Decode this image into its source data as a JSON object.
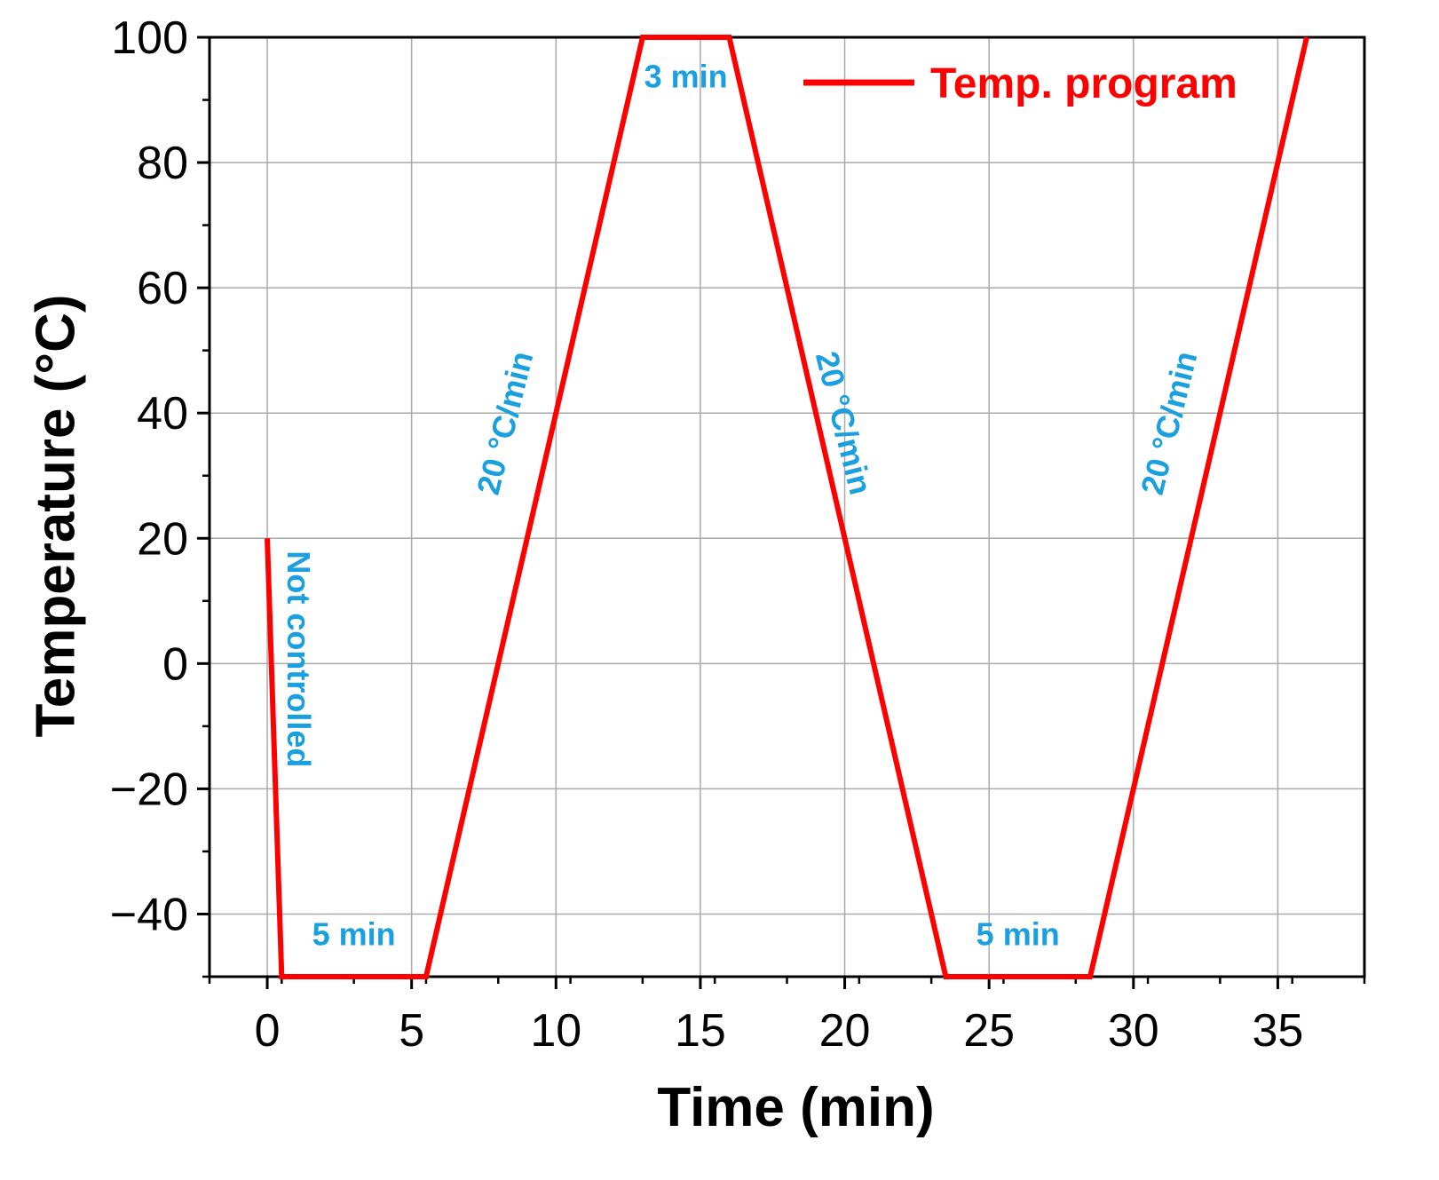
{
  "chart_data": {
    "type": "line",
    "title": "",
    "xlabel": "Time (min)",
    "ylabel": "Temperature (°C)",
    "xlim": [
      -2,
      38
    ],
    "ylim": [
      -50,
      100
    ],
    "xticks": [
      0,
      5,
      10,
      15,
      20,
      25,
      30,
      35
    ],
    "yticks": [
      -40,
      -20,
      0,
      20,
      40,
      60,
      80,
      100
    ],
    "xtick_labels": [
      "0",
      "5",
      "10",
      "15",
      "20",
      "25",
      "30",
      "35"
    ],
    "ytick_labels": [
      "−40",
      "−20",
      "0",
      "20",
      "40",
      "60",
      "80",
      "100"
    ],
    "grid": true,
    "legend": {
      "position": "top-right",
      "entries": [
        "Temp. program"
      ]
    },
    "series": [
      {
        "name": "Temp. program",
        "color": "#ff0000",
        "x": [
          0,
          0.5,
          5.5,
          13,
          16,
          23.5,
          28.5,
          36
        ],
        "y": [
          20,
          -50,
          -50,
          100,
          100,
          -50,
          -50,
          100
        ]
      }
    ],
    "annotations": [
      {
        "text": "Not controlled",
        "x": 0.7,
        "y": 18,
        "rotation": 90,
        "color": "#1a9fe0"
      },
      {
        "text": "5 min",
        "x": 3,
        "y": -45,
        "rotation": 0,
        "color": "#1a9fe0"
      },
      {
        "text": "20 °C/min",
        "x": 8.6,
        "y": 38,
        "rotation": -76,
        "color": "#1a9fe0"
      },
      {
        "text": "3 min",
        "x": 14.5,
        "y": 92,
        "rotation": 0,
        "color": "#1a9fe0"
      },
      {
        "text": "20 °C/min",
        "x": 19.6,
        "y": 38,
        "rotation": 76,
        "color": "#1a9fe0"
      },
      {
        "text": "5 min",
        "x": 26,
        "y": -45,
        "rotation": 0,
        "color": "#1a9fe0"
      },
      {
        "text": "20 °C/min",
        "x": 31.6,
        "y": 38,
        "rotation": -76,
        "color": "#1a9fe0"
      }
    ]
  }
}
